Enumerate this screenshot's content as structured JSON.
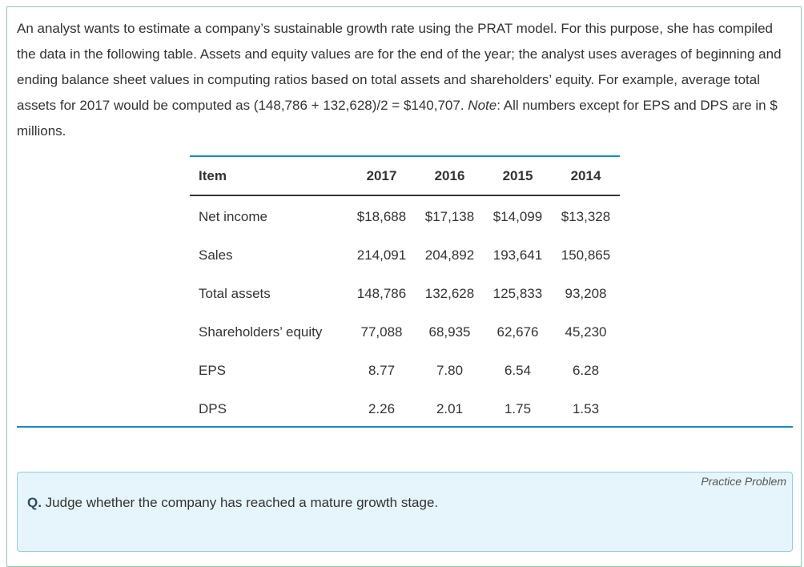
{
  "intro": {
    "text_before_note": "An analyst wants to estimate a company’s sustainable growth rate using the PRAT model. For this purpose, she has compiled the data in the following table. Assets and equity values are for the end of the year; the analyst uses averages of beginning and ending balance sheet values in computing ratios based on total assets and shareholders’ equity. For example, average total assets for 2017 would be computed as (148,786 + 132,628)/2 = $140,707. ",
    "note_label": "Note",
    "text_after_note": ": All numbers except for EPS and DPS are in $ millions."
  },
  "table": {
    "headers": [
      "Item",
      "2017",
      "2016",
      "2015",
      "2014"
    ],
    "rows": [
      [
        "Net income",
        "$18,688",
        "$17,138",
        "$14,099",
        "$13,328"
      ],
      [
        "Sales",
        "214,091",
        "204,892",
        "193,641",
        "150,865"
      ],
      [
        "Total assets",
        "148,786",
        "132,628",
        "125,833",
        "93,208"
      ],
      [
        "Shareholders’ equity",
        "77,088",
        "68,935",
        "62,676",
        "45,230"
      ],
      [
        "EPS",
        "8.77",
        "7.80",
        "6.54",
        "6.28"
      ],
      [
        "DPS",
        "2.26",
        "2.01",
        "1.75",
        "1.53"
      ]
    ]
  },
  "practice": {
    "tag": "Practice Problem",
    "q_label": "Q.",
    "question": " Judge whether the company has reached a mature growth stage."
  },
  "colors": {
    "accent_blue": "#1b8bbf",
    "frame_green": "#8ec9a8",
    "practice_bg": "#e5f5fb"
  }
}
